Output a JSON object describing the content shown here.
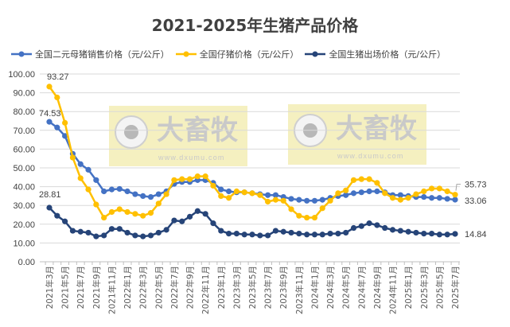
{
  "chart_data": {
    "type": "line",
    "title": "2021-2025年生猪产品价格",
    "xlabel": "",
    "ylabel": "",
    "ylim": [
      0,
      100
    ],
    "y_ticks": [
      "0.00",
      "10.00",
      "20.00",
      "30.00",
      "40.00",
      "50.00",
      "60.00",
      "70.00",
      "80.00",
      "90.00",
      "100.00"
    ],
    "grid": true,
    "legend_position": "top",
    "x": [
      "2021-03",
      "2021-04",
      "2021-05",
      "2021-06",
      "2021-07",
      "2021-08",
      "2021-09",
      "2021-10",
      "2021-11",
      "2021-12",
      "2022-01",
      "2022-02",
      "2022-03",
      "2022-04",
      "2022-05",
      "2022-06",
      "2022-07",
      "2022-08",
      "2022-09",
      "2022-10",
      "2022-11",
      "2022-12",
      "2023-01",
      "2023-02",
      "2023-03",
      "2023-04",
      "2023-05",
      "2023-06",
      "2023-07",
      "2023-08",
      "2023-09",
      "2023-10",
      "2023-11",
      "2023-12",
      "2024-01",
      "2024-02",
      "2024-03",
      "2024-04",
      "2024-05",
      "2024-06",
      "2024-07",
      "2024-08",
      "2024-09",
      "2024-10",
      "2024-11",
      "2024-12",
      "2025-01",
      "2025-02",
      "2025-03",
      "2025-04",
      "2025-05",
      "2025-06",
      "2025-07"
    ],
    "tick_labels": [
      "2021年3月",
      "2021年5月",
      "2021年7月",
      "2021年9月",
      "2021年11月",
      "2022年1月",
      "2022年3月",
      "2022年5月",
      "2022年7月",
      "2022年9月",
      "2022年11月",
      "2023年1月",
      "2023年3月",
      "2023年5月",
      "2023年7月",
      "2023年9月",
      "2023年11月",
      "2024年1月",
      "2024年3月",
      "2024年5月",
      "2024年7月",
      "2024年9月",
      "2024年11月",
      "2025年1月",
      "2025年3月",
      "2025年5月",
      "2025年7月"
    ],
    "series": [
      {
        "name": "全国二元母猪销售价格（元/公斤）",
        "color": "#4472C4",
        "values": [
          74.53,
          71.5,
          67,
          57.5,
          52,
          49,
          43.5,
          37.5,
          38.5,
          38.8,
          37.5,
          36,
          35,
          34.5,
          36,
          37.5,
          41.5,
          42.5,
          42.5,
          43.5,
          43.5,
          42,
          38.5,
          37.5,
          37,
          37,
          36.5,
          36,
          35.5,
          35.5,
          34.5,
          33.5,
          33,
          32.5,
          32.5,
          33,
          34,
          35,
          35.5,
          36.5,
          37,
          37.5,
          37.5,
          37,
          35.5,
          35.5,
          35,
          34.5,
          34.5,
          34,
          34,
          33.5,
          33.06
        ],
        "labels": [
          {
            "index": 0,
            "text": "74.53"
          },
          {
            "index": 52,
            "text": "33.06"
          }
        ]
      },
      {
        "name": "全国仔猪价格（元/公斤）",
        "color": "#FFC000",
        "values": [
          93.27,
          87.5,
          74,
          55.5,
          44.5,
          38.5,
          30.5,
          23.5,
          26.5,
          28,
          26.5,
          25.5,
          24.5,
          26,
          31,
          36,
          43.5,
          44,
          44,
          45.5,
          45.5,
          40.5,
          35,
          34,
          37.5,
          37,
          36.5,
          35.5,
          32,
          33,
          32.5,
          28,
          24.5,
          23.5,
          23.5,
          28.5,
          32.5,
          36.5,
          38,
          43.5,
          44,
          44,
          42,
          36.5,
          34,
          33,
          34,
          36,
          37.5,
          39,
          39,
          37.5,
          35.73
        ],
        "labels": [
          {
            "index": 0,
            "text": "93.27"
          },
          {
            "index": 52,
            "text": "35.73"
          }
        ]
      },
      {
        "name": "全国生猪出场价格（元/公斤）",
        "color": "#264478",
        "values": [
          28.81,
          24.5,
          21.5,
          16.5,
          16,
          15.5,
          13.5,
          14,
          17.5,
          17.5,
          15.5,
          14,
          13.5,
          14,
          15.5,
          17,
          22,
          21.5,
          24,
          27,
          25.5,
          20.5,
          16.5,
          15,
          15,
          14.5,
          14.5,
          14,
          14,
          16.5,
          16,
          15.5,
          15,
          14.5,
          14.5,
          14.5,
          15,
          15,
          15.5,
          18,
          19,
          20.5,
          19.5,
          18,
          17,
          16.5,
          16,
          15.5,
          15,
          15,
          14.5,
          14.5,
          14.84
        ],
        "labels": [
          {
            "index": 0,
            "text": "28.81"
          },
          {
            "index": 52,
            "text": "14.84"
          }
        ]
      }
    ]
  },
  "watermark": {
    "brand": "大畜牧",
    "url": "www.dxumu.com",
    "box_color": "#F3EDB5"
  }
}
